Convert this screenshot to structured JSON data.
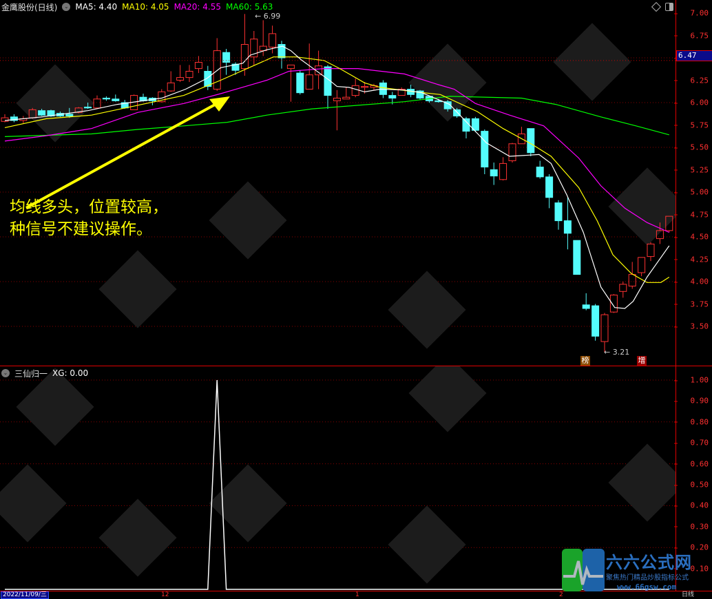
{
  "header": {
    "stock_title": "金鹰股份(日线)",
    "ma5": "MA5: 4.40",
    "ma10": "MA10: 4.05",
    "ma20": "MA20: 4.55",
    "ma60": "MA60: 5.63"
  },
  "colors": {
    "ma5": "#ffffff",
    "ma10": "#ffff00",
    "ma20": "#ff00ff",
    "ma60": "#00ff00",
    "up": "#ff3232",
    "down": "#54fcfc",
    "axis": "#e00000",
    "xg": "#ffffff"
  },
  "price_axis": {
    "ticks": [
      "7.00",
      "6.75",
      "6.50",
      "6.25",
      "6.00",
      "5.75",
      "5.50",
      "5.25",
      "5.00",
      "4.75",
      "4.50",
      "4.25",
      "4.00",
      "3.75",
      "3.50"
    ],
    "current_price": "6.47"
  },
  "indicator": {
    "title": "三仙归一",
    "value": "XG: 0.00",
    "ticks": [
      "1.00",
      "0.90",
      "0.80",
      "0.70",
      "0.60",
      "0.50",
      "0.40",
      "0.30",
      "0.20",
      "0.10"
    ]
  },
  "annotations": {
    "high": "6.99",
    "low": "3.21",
    "badge_bang": "榜",
    "badge_zeng": "增",
    "note_line1": "均线多头，位置较高，",
    "note_line2": "种信号不建议操作。"
  },
  "date_axis": {
    "current_date": "2022/11/09/三",
    "labels": [
      "12",
      "1",
      "2"
    ],
    "period": "日线"
  },
  "logo": {
    "name": "六六公式网",
    "slogan": "聚焦热门精品炒股指标公式",
    "url": "www.66gsw.com"
  },
  "chart_data": {
    "type": "candlestick",
    "price_range": [
      3.2,
      7.05
    ],
    "candles_ohlc": [
      [
        5.79,
        5.87,
        5.78,
        5.83
      ],
      [
        5.84,
        5.87,
        5.78,
        5.8
      ],
      [
        5.8,
        5.85,
        5.77,
        5.82
      ],
      [
        5.83,
        5.94,
        5.82,
        5.92
      ],
      [
        5.91,
        5.93,
        5.85,
        5.86
      ],
      [
        5.91,
        5.92,
        5.84,
        5.85
      ],
      [
        5.88,
        5.9,
        5.84,
        5.85
      ],
      [
        5.87,
        5.94,
        5.83,
        5.85
      ],
      [
        5.89,
        5.95,
        5.88,
        5.94
      ],
      [
        5.95,
        6.0,
        5.93,
        5.94
      ],
      [
        5.94,
        6.08,
        5.93,
        6.04
      ],
      [
        6.05,
        6.07,
        6.02,
        6.04
      ],
      [
        6.04,
        6.09,
        6.01,
        6.02
      ],
      [
        6.0,
        6.03,
        5.93,
        5.94
      ],
      [
        5.92,
        6.09,
        5.92,
        6.08
      ],
      [
        6.06,
        6.1,
        6.01,
        6.02
      ],
      [
        6.05,
        6.06,
        5.97,
        6.02
      ],
      [
        6.01,
        6.15,
        6.0,
        6.12
      ],
      [
        6.13,
        6.35,
        6.12,
        6.22
      ],
      [
        6.25,
        6.42,
        6.23,
        6.28
      ],
      [
        6.28,
        6.42,
        6.23,
        6.35
      ],
      [
        6.38,
        6.52,
        6.33,
        6.45
      ],
      [
        6.35,
        6.41,
        6.14,
        6.18
      ],
      [
        6.15,
        6.72,
        6.13,
        6.58
      ],
      [
        6.56,
        6.6,
        6.31,
        6.45
      ],
      [
        6.43,
        6.45,
        6.31,
        6.36
      ],
      [
        6.38,
        6.99,
        6.3,
        6.65
      ],
      [
        6.51,
        6.8,
        6.42,
        6.71
      ],
      [
        6.58,
        6.92,
        6.52,
        6.63
      ],
      [
        6.62,
        6.86,
        6.55,
        6.77
      ],
      [
        6.65,
        6.69,
        6.38,
        6.5
      ],
      [
        6.38,
        6.42,
        6.01,
        6.42
      ],
      [
        6.33,
        6.36,
        6.09,
        6.11
      ],
      [
        6.15,
        6.66,
        6.15,
        6.31
      ],
      [
        6.31,
        6.58,
        6.15,
        6.41
      ],
      [
        6.4,
        6.42,
        5.93,
        6.08
      ],
      [
        6.02,
        6.14,
        5.69,
        6.05
      ],
      [
        6.04,
        6.17,
        6.04,
        6.06
      ],
      [
        6.08,
        6.27,
        6.06,
        6.19
      ],
      [
        6.17,
        6.23,
        6.1,
        6.18
      ],
      [
        6.17,
        6.21,
        6.14,
        6.19
      ],
      [
        6.22,
        6.25,
        6.05,
        6.09
      ],
      [
        6.08,
        6.12,
        5.98,
        6.05
      ],
      [
        6.08,
        6.17,
        6.08,
        6.15
      ],
      [
        6.15,
        6.2,
        6.06,
        6.09
      ],
      [
        6.13,
        6.14,
        6.03,
        6.05
      ],
      [
        6.07,
        6.08,
        6.0,
        6.02
      ],
      [
        6.02,
        6.04,
        6.0,
        6.01
      ],
      [
        6.01,
        6.03,
        5.9,
        5.93
      ],
      [
        5.92,
        5.94,
        5.83,
        5.85
      ],
      [
        5.82,
        5.84,
        5.6,
        5.68
      ],
      [
        5.82,
        5.84,
        5.67,
        5.69
      ],
      [
        5.68,
        5.7,
        5.2,
        5.28
      ],
      [
        5.25,
        5.33,
        5.08,
        5.18
      ],
      [
        5.14,
        5.39,
        5.13,
        5.32
      ],
      [
        5.35,
        5.55,
        5.33,
        5.54
      ],
      [
        5.54,
        5.73,
        5.54,
        5.65
      ],
      [
        5.71,
        5.71,
        5.4,
        5.44
      ],
      [
        5.28,
        5.35,
        5.15,
        5.17
      ],
      [
        5.17,
        5.2,
        4.82,
        4.94
      ],
      [
        4.88,
        4.91,
        4.58,
        4.68
      ],
      [
        4.68,
        4.94,
        4.36,
        4.54
      ],
      [
        4.46,
        4.46,
        4.08,
        4.08
      ],
      [
        3.74,
        3.87,
        3.68,
        3.7
      ],
      [
        3.73,
        3.75,
        3.34,
        3.39
      ],
      [
        3.33,
        3.65,
        3.21,
        3.63
      ],
      [
        3.66,
        3.86,
        3.65,
        3.85
      ],
      [
        3.89,
        4.0,
        3.82,
        3.97
      ],
      [
        3.95,
        4.22,
        3.92,
        4.08
      ],
      [
        4.1,
        4.27,
        4.06,
        4.27
      ],
      [
        4.28,
        4.44,
        4.23,
        4.42
      ],
      [
        4.48,
        4.66,
        4.42,
        4.57
      ],
      [
        4.57,
        4.73,
        4.55,
        4.73
      ]
    ],
    "ma5": [
      [
        0,
        5.8
      ],
      [
        4,
        5.84
      ],
      [
        9,
        5.91
      ],
      [
        12.2,
        5.98
      ],
      [
        17,
        6.05
      ],
      [
        19.6,
        6.15
      ],
      [
        21.9,
        6.27
      ],
      [
        23.4,
        6.39
      ],
      [
        25.8,
        6.44
      ],
      [
        26.6,
        6.53
      ],
      [
        28.4,
        6.59
      ],
      [
        30.1,
        6.63
      ],
      [
        31,
        6.58
      ],
      [
        32.1,
        6.48
      ],
      [
        33.3,
        6.39
      ],
      [
        35.3,
        6.24
      ],
      [
        36,
        6.18
      ],
      [
        37.3,
        6.17
      ],
      [
        39,
        6.12
      ],
      [
        40.7,
        6.15
      ],
      [
        43.3,
        6.14
      ],
      [
        45.2,
        6.11
      ],
      [
        48.2,
        5.98
      ],
      [
        52.2,
        5.55
      ],
      [
        54.7,
        5.4
      ],
      [
        57.9,
        5.42
      ],
      [
        59.2,
        5.32
      ],
      [
        60.9,
        4.97
      ],
      [
        62.7,
        4.55
      ],
      [
        64.6,
        3.94
      ],
      [
        66.1,
        3.71
      ],
      [
        67.2,
        3.7
      ],
      [
        68.1,
        3.78
      ],
      [
        69.6,
        4.05
      ],
      [
        72,
        4.4
      ]
    ],
    "ma10": [
      [
        0,
        5.72
      ],
      [
        4.5,
        5.82
      ],
      [
        9.4,
        5.86
      ],
      [
        14.4,
        5.97
      ],
      [
        19.4,
        6.08
      ],
      [
        23.4,
        6.25
      ],
      [
        29.1,
        6.51
      ],
      [
        31.6,
        6.51
      ],
      [
        34.6,
        6.47
      ],
      [
        36.3,
        6.38
      ],
      [
        39,
        6.22
      ],
      [
        40.7,
        6.17
      ],
      [
        44.5,
        6.12
      ],
      [
        47.2,
        6.09
      ],
      [
        51.2,
        5.9
      ],
      [
        54,
        5.71
      ],
      [
        57.2,
        5.53
      ],
      [
        59.2,
        5.4
      ],
      [
        62.2,
        5.05
      ],
      [
        64.2,
        4.68
      ],
      [
        65.9,
        4.3
      ],
      [
        67.9,
        4.09
      ],
      [
        69.6,
        3.99
      ],
      [
        71.1,
        3.99
      ],
      [
        72,
        4.05
      ]
    ],
    "ma20": [
      [
        0,
        5.57
      ],
      [
        4.5,
        5.63
      ],
      [
        9.4,
        5.71
      ],
      [
        14.4,
        5.89
      ],
      [
        19.4,
        5.99
      ],
      [
        23.4,
        6.1
      ],
      [
        28.4,
        6.25
      ],
      [
        30.8,
        6.35
      ],
      [
        34.6,
        6.38
      ],
      [
        38.3,
        6.38
      ],
      [
        43.3,
        6.32
      ],
      [
        47,
        6.2
      ],
      [
        48.7,
        6.15
      ],
      [
        51,
        5.99
      ],
      [
        54.7,
        5.86
      ],
      [
        58.4,
        5.74
      ],
      [
        62.2,
        5.38
      ],
      [
        64.6,
        5.07
      ],
      [
        67.2,
        4.82
      ],
      [
        69.6,
        4.66
      ],
      [
        72,
        4.55
      ]
    ],
    "ma60": [
      [
        0,
        5.62
      ],
      [
        9.4,
        5.65
      ],
      [
        14.4,
        5.7
      ],
      [
        19.4,
        5.74
      ],
      [
        24.1,
        5.78
      ],
      [
        28.4,
        5.86
      ],
      [
        33.3,
        5.93
      ],
      [
        38.3,
        5.97
      ],
      [
        43.3,
        6.01
      ],
      [
        48.2,
        6.07
      ],
      [
        56,
        6.05
      ],
      [
        59.7,
        5.98
      ],
      [
        64.6,
        5.84
      ],
      [
        68.4,
        5.74
      ],
      [
        72,
        5.64
      ]
    ],
    "xg_signal_index": 23,
    "xg_range": [
      0,
      1
    ]
  }
}
